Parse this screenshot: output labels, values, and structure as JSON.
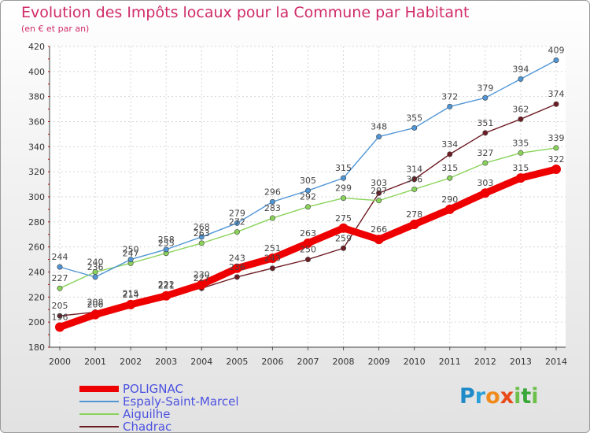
{
  "chart_data": {
    "type": "line",
    "title": "Evolution des Impôts locaux pour la Commune par Habitant",
    "subtitle": "(en € et par an)",
    "xlabel": "",
    "ylabel": "",
    "ylim": [
      180,
      420
    ],
    "yticks": [
      180,
      200,
      220,
      240,
      260,
      280,
      300,
      320,
      340,
      360,
      380,
      400,
      420
    ],
    "x": [
      "2000",
      "2001",
      "2002",
      "2003",
      "2004",
      "2005",
      "2006",
      "2007",
      "2008",
      "2009",
      "2010",
      "2011",
      "2012",
      "2013",
      "2014"
    ],
    "grid": true,
    "series": [
      {
        "name": "POLIGNAC",
        "color": "#ee0000",
        "values": [
          196,
          206,
          214,
          221,
          230,
          243,
          251,
          263,
          275,
          266,
          278,
          290,
          303,
          315,
          322
        ]
      },
      {
        "name": "Espaly-Saint-Marcel",
        "color": "#5096d6",
        "values": [
          244,
          236,
          250,
          258,
          268,
          279,
          296,
          305,
          315,
          348,
          355,
          372,
          379,
          394,
          409
        ]
      },
      {
        "name": "Aiguilhe",
        "color": "#8ad35a",
        "values": [
          227,
          240,
          247,
          255,
          263,
          272,
          283,
          292,
          299,
          297,
          306,
          315,
          327,
          335,
          339
        ]
      },
      {
        "name": "Chadrac",
        "color": "#6e1c24",
        "values": [
          205,
          208,
          215,
          222,
          227,
          236,
          243,
          250,
          259,
          303,
          314,
          334,
          351,
          362,
          374
        ]
      }
    ],
    "value_labels": [
      [
        "196",
        "206",
        "214",
        "221",
        "230",
        "243",
        "251",
        "263",
        "275",
        "266",
        "278",
        "290",
        "303",
        "315",
        "322"
      ],
      [
        "244",
        "236",
        "250",
        "258",
        "268",
        "279",
        "296",
        "305",
        "315",
        "348",
        "355",
        "372",
        "379",
        "394",
        "409"
      ],
      [
        "227",
        "240",
        "247",
        "255",
        "263",
        "272",
        "283",
        "292",
        "299",
        "297",
        "306",
        "315",
        "327",
        "335",
        "339"
      ],
      [
        "205",
        "208",
        "215",
        "222",
        "227",
        "236",
        "243",
        "250",
        "259",
        "303",
        "314",
        "334",
        "351",
        "362",
        "374"
      ]
    ]
  },
  "legend": {
    "items": [
      "POLIGNAC",
      "Espaly-Saint-Marcel",
      "Aiguilhe",
      "Chadrac"
    ]
  },
  "logo": {
    "letters": [
      "P",
      "r",
      "o",
      "x",
      "i",
      "t",
      "i"
    ]
  }
}
